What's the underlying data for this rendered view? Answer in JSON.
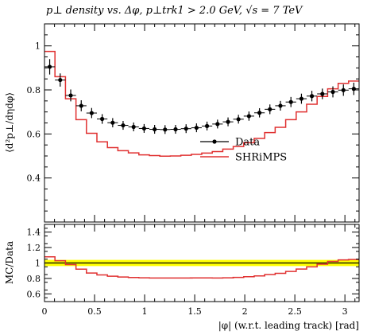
{
  "chart_data": [
    {
      "type": "line",
      "panel": "main",
      "title": "p⊥ density vs. Δφ, p⊥trk1 > 2.0 GeV, √s = 7 TeV",
      "ylabel": "⟨d²p⊥/dηdφ⟩",
      "xlim": [
        0,
        3.1416
      ],
      "ylim": [
        0.2,
        1.1
      ],
      "yticks": [
        "0.4",
        "0.6",
        "0.8",
        "1"
      ],
      "legend_position": "center-right",
      "x": [
        0.052,
        0.157,
        0.262,
        0.367,
        0.471,
        0.576,
        0.681,
        0.785,
        0.89,
        0.995,
        1.1,
        1.204,
        1.309,
        1.414,
        1.518,
        1.623,
        1.728,
        1.833,
        1.937,
        2.042,
        2.147,
        2.251,
        2.356,
        2.461,
        2.566,
        2.67,
        2.775,
        2.88,
        2.985,
        3.089
      ],
      "series": [
        {
          "name": "Data",
          "color": "#000000",
          "values": [
            0.905,
            0.845,
            0.775,
            0.728,
            0.695,
            0.668,
            0.651,
            0.639,
            0.632,
            0.625,
            0.621,
            0.62,
            0.621,
            0.624,
            0.628,
            0.636,
            0.645,
            0.655,
            0.667,
            0.681,
            0.696,
            0.712,
            0.728,
            0.745,
            0.76,
            0.772,
            0.782,
            0.791,
            0.799,
            0.805
          ],
          "errors": [
            0.035,
            0.03,
            0.027,
            0.025,
            0.023,
            0.022,
            0.021,
            0.02,
            0.02,
            0.02,
            0.02,
            0.02,
            0.02,
            0.02,
            0.02,
            0.02,
            0.02,
            0.02,
            0.02,
            0.021,
            0.021,
            0.022,
            0.022,
            0.023,
            0.023,
            0.024,
            0.024,
            0.025,
            0.026,
            0.028
          ]
        },
        {
          "name": "SHRiMPS",
          "color": "#e03030",
          "values": [
            0.975,
            0.86,
            0.76,
            0.665,
            0.603,
            0.564,
            0.538,
            0.524,
            0.514,
            0.505,
            0.502,
            0.499,
            0.5,
            0.503,
            0.507,
            0.513,
            0.52,
            0.531,
            0.543,
            0.56,
            0.58,
            0.606,
            0.63,
            0.665,
            0.7,
            0.735,
            0.77,
            0.805,
            0.83,
            0.84
          ]
        }
      ]
    },
    {
      "type": "line",
      "panel": "ratio",
      "ylabel": "MC/Data",
      "xlabel": "|φ| (w.r.t. leading track) [rad]",
      "xlim": [
        0,
        3.1416
      ],
      "ylim": [
        0.5,
        1.5
      ],
      "xticks": [
        "0",
        "0.5",
        "1",
        "1.5",
        "2",
        "2.5",
        "3"
      ],
      "yticks": [
        "0.6",
        "0.8",
        "1",
        "1.2",
        "1.4"
      ],
      "band": {
        "lo": 0.96,
        "hi": 1.04,
        "color": "#ffff00"
      },
      "reference": 1.0,
      "series": [
        {
          "name": "SHRiMPS / Data",
          "color": "#e03030",
          "values": [
            1.08,
            1.03,
            0.98,
            0.92,
            0.87,
            0.845,
            0.828,
            0.818,
            0.812,
            0.808,
            0.806,
            0.805,
            0.805,
            0.806,
            0.807,
            0.807,
            0.806,
            0.808,
            0.813,
            0.822,
            0.833,
            0.851,
            0.866,
            0.891,
            0.921,
            0.95,
            0.985,
            1.02,
            1.04,
            1.045
          ]
        }
      ]
    }
  ]
}
